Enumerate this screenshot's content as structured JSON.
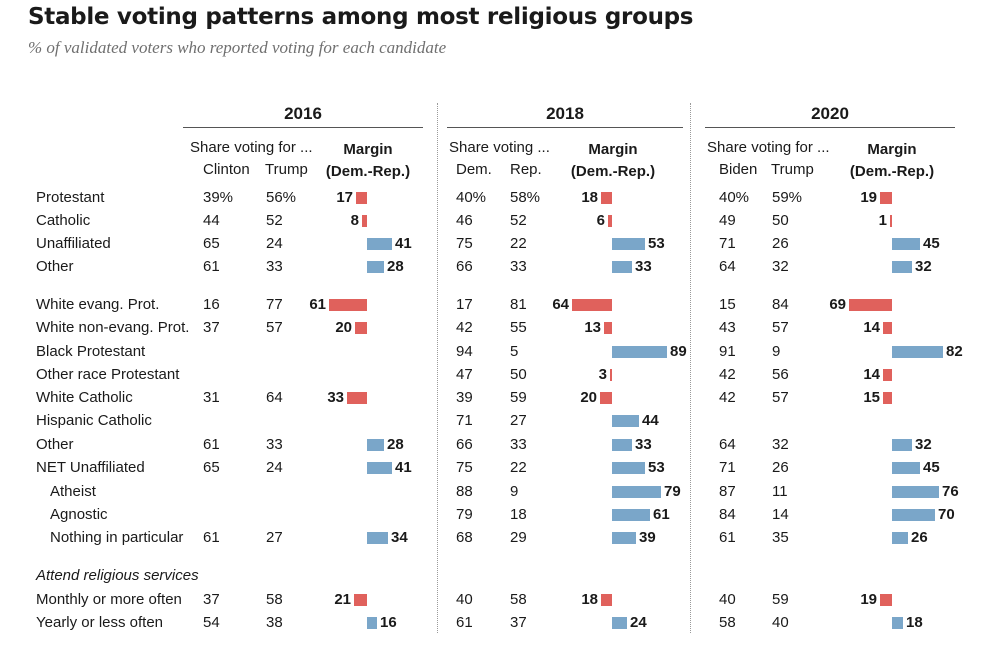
{
  "title": "Stable voting patterns among most religious groups",
  "subtitle": "% of validated voters who reported voting for each candidate",
  "colors": {
    "dem": "#7aa6c9",
    "rep": "#e0615c"
  },
  "panels": [
    {
      "year": "2016",
      "share_label": "Share voting for ...",
      "col_d": "Clinton",
      "col_r": "Trump",
      "margin_label": "Margin",
      "margin_sub": "(Dem.-Rep.)"
    },
    {
      "year": "2018",
      "share_label": "Share voting ...",
      "col_d": "Dem.",
      "col_r": "Rep.",
      "margin_label": "Margin",
      "margin_sub": "(Dem.-Rep.)"
    },
    {
      "year": "2020",
      "share_label": "Share voting for ...",
      "col_d": "Biden",
      "col_r": "Trump",
      "margin_label": "Margin",
      "margin_sub": "(Dem.-Rep.)"
    }
  ],
  "chart_data": {
    "type": "bar",
    "title": "Stable voting patterns among most religious groups",
    "subtitle": "% of validated voters who reported voting for each candidate",
    "years": [
      "2016",
      "2018",
      "2020"
    ],
    "rows": [
      {
        "label": "Protestant",
        "values": [
          {
            "d": "39%",
            "r": "56%",
            "m": 17,
            "side": "rep"
          },
          {
            "d": "40%",
            "r": "58%",
            "m": 18,
            "side": "rep"
          },
          {
            "d": "40%",
            "r": "59%",
            "m": 19,
            "side": "rep"
          }
        ]
      },
      {
        "label": "Catholic",
        "values": [
          {
            "d": "44",
            "r": "52",
            "m": 8,
            "side": "rep"
          },
          {
            "d": "46",
            "r": "52",
            "m": 6,
            "side": "rep"
          },
          {
            "d": "49",
            "r": "50",
            "m": 1,
            "side": "rep"
          }
        ]
      },
      {
        "label": "Unaffiliated",
        "values": [
          {
            "d": "65",
            "r": "24",
            "m": 41,
            "side": "dem"
          },
          {
            "d": "75",
            "r": "22",
            "m": 53,
            "side": "dem"
          },
          {
            "d": "71",
            "r": "26",
            "m": 45,
            "side": "dem"
          }
        ]
      },
      {
        "label": "Other",
        "values": [
          {
            "d": "61",
            "r": "33",
            "m": 28,
            "side": "dem"
          },
          {
            "d": "66",
            "r": "33",
            "m": 33,
            "side": "dem"
          },
          {
            "d": "64",
            "r": "32",
            "m": 32,
            "side": "dem"
          }
        ]
      },
      {
        "label": "White evang. Prot.",
        "values": [
          {
            "d": "16",
            "r": "77",
            "m": 61,
            "side": "rep"
          },
          {
            "d": "17",
            "r": "81",
            "m": 64,
            "side": "rep"
          },
          {
            "d": "15",
            "r": "84",
            "m": 69,
            "side": "rep"
          }
        ]
      },
      {
        "label": "White non-evang. Prot.",
        "values": [
          {
            "d": "37",
            "r": "57",
            "m": 20,
            "side": "rep"
          },
          {
            "d": "42",
            "r": "55",
            "m": 13,
            "side": "rep"
          },
          {
            "d": "43",
            "r": "57",
            "m": 14,
            "side": "rep"
          }
        ]
      },
      {
        "label": "Black Protestant",
        "values": [
          null,
          {
            "d": "94",
            "r": "5",
            "m": 89,
            "side": "dem"
          },
          {
            "d": "91",
            "r": "9",
            "m": 82,
            "side": "dem"
          }
        ]
      },
      {
        "label": "Other race Protestant",
        "values": [
          null,
          {
            "d": "47",
            "r": "50",
            "m": 3,
            "side": "rep"
          },
          {
            "d": "42",
            "r": "56",
            "m": 14,
            "side": "rep"
          }
        ]
      },
      {
        "label": "White Catholic",
        "values": [
          {
            "d": "31",
            "r": "64",
            "m": 33,
            "side": "rep"
          },
          {
            "d": "39",
            "r": "59",
            "m": 20,
            "side": "rep"
          },
          {
            "d": "42",
            "r": "57",
            "m": 15,
            "side": "rep"
          }
        ]
      },
      {
        "label": "Hispanic Catholic",
        "values": [
          null,
          {
            "d": "71",
            "r": "27",
            "m": 44,
            "side": "dem"
          },
          null
        ]
      },
      {
        "label": "Other",
        "values": [
          {
            "d": "61",
            "r": "33",
            "m": 28,
            "side": "dem"
          },
          {
            "d": "66",
            "r": "33",
            "m": 33,
            "side": "dem"
          },
          {
            "d": "64",
            "r": "32",
            "m": 32,
            "side": "dem"
          }
        ]
      },
      {
        "label": "NET Unaffiliated",
        "values": [
          {
            "d": "65",
            "r": "24",
            "m": 41,
            "side": "dem"
          },
          {
            "d": "75",
            "r": "22",
            "m": 53,
            "side": "dem"
          },
          {
            "d": "71",
            "r": "26",
            "m": 45,
            "side": "dem"
          }
        ]
      },
      {
        "label": "Atheist",
        "indent": true,
        "values": [
          null,
          {
            "d": "88",
            "r": "9",
            "m": 79,
            "side": "dem"
          },
          {
            "d": "87",
            "r": "11",
            "m": 76,
            "side": "dem"
          }
        ]
      },
      {
        "label": "Agnostic",
        "indent": true,
        "values": [
          null,
          {
            "d": "79",
            "r": "18",
            "m": 61,
            "side": "dem"
          },
          {
            "d": "84",
            "r": "14",
            "m": 70,
            "side": "dem"
          }
        ]
      },
      {
        "label": "Nothing in particular",
        "indent": true,
        "values": [
          {
            "d": "61",
            "r": "27",
            "m": 34,
            "side": "dem"
          },
          {
            "d": "68",
            "r": "29",
            "m": 39,
            "side": "dem"
          },
          {
            "d": "61",
            "r": "35",
            "m": 26,
            "side": "dem"
          }
        ]
      },
      {
        "label": "Attend religious services",
        "section": true,
        "values": [
          null,
          null,
          null
        ]
      },
      {
        "label": "Monthly or more often",
        "values": [
          {
            "d": "37",
            "r": "58",
            "m": 21,
            "side": "rep"
          },
          {
            "d": "40",
            "r": "58",
            "m": 18,
            "side": "rep"
          },
          {
            "d": "40",
            "r": "59",
            "m": 19,
            "side": "rep"
          }
        ]
      },
      {
        "label": "Yearly or less often",
        "values": [
          {
            "d": "54",
            "r": "38",
            "m": 16,
            "side": "dem"
          },
          {
            "d": "61",
            "r": "37",
            "m": 24,
            "side": "dem"
          },
          {
            "d": "58",
            "r": "40",
            "m": 18,
            "side": "dem"
          }
        ]
      }
    ]
  }
}
